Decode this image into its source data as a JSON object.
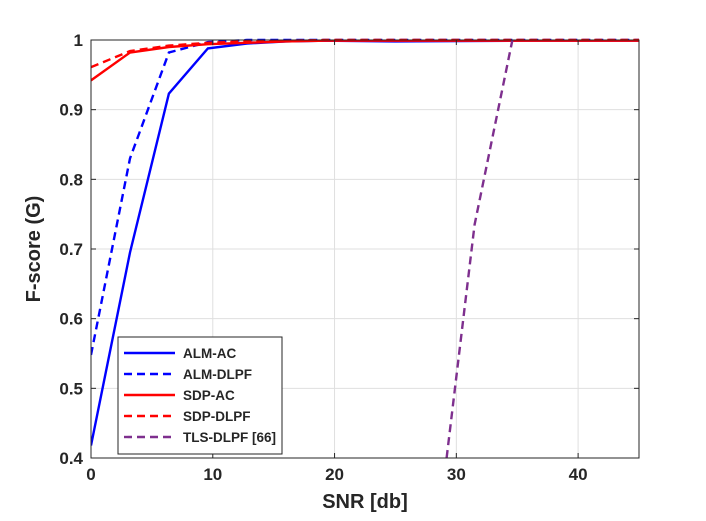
{
  "chart_data": {
    "type": "line",
    "title": "",
    "xlabel": "SNR [db]",
    "ylabel": "F-score (G)",
    "xlim": [
      0,
      45
    ],
    "ylim": [
      0.4,
      1
    ],
    "xticks": [
      0,
      10,
      20,
      30,
      40
    ],
    "yticks": [
      0.4,
      0.5,
      0.6,
      0.7,
      0.8,
      0.9,
      1
    ],
    "xtick_labels": [
      "0",
      "10",
      "20",
      "30",
      "40"
    ],
    "ytick_labels": [
      "0.4",
      "0.5",
      "0.6",
      "0.7",
      "0.8",
      "0.9",
      "1"
    ],
    "grid": true,
    "legend_position": "bottom-left",
    "series": [
      {
        "name": "ALM-AC",
        "color": "#0000ff",
        "dash": "solid",
        "x": [
          0,
          3.2,
          6.4,
          9.6,
          12.8,
          16,
          19.2,
          25,
          35,
          45
        ],
        "y": [
          0.418,
          0.695,
          0.923,
          0.988,
          0.995,
          0.998,
          0.999,
          0.998,
          0.999,
          0.999
        ]
      },
      {
        "name": "ALM-DLPF",
        "color": "#0000ff",
        "dash": "dashed",
        "x": [
          0,
          3.2,
          6.4,
          9.6,
          12.8,
          16,
          19.2,
          25,
          35,
          45
        ],
        "y": [
          0.548,
          0.83,
          0.982,
          0.997,
          1.0,
          1.0,
          1.0,
          1.0,
          1.0,
          1.0
        ]
      },
      {
        "name": "SDP-AC",
        "color": "#ff0000",
        "dash": "solid",
        "x": [
          0,
          3.2,
          6.4,
          9.6,
          12.8,
          16,
          19.2,
          25,
          35,
          45
        ],
        "y": [
          0.942,
          0.982,
          0.99,
          0.994,
          0.996,
          0.998,
          0.999,
          0.999,
          0.999,
          0.999
        ]
      },
      {
        "name": "SDP-DLPF",
        "color": "#ff0000",
        "dash": "dashed",
        "x": [
          0,
          3.2,
          6.4,
          9.6,
          12.8,
          16,
          19.2,
          25,
          35,
          45
        ],
        "y": [
          0.961,
          0.984,
          0.992,
          0.996,
          0.998,
          0.999,
          1.0,
          1.0,
          1.0,
          1.0
        ]
      },
      {
        "name": "TLS-DLPF [66]",
        "color": "#7e2f8e",
        "dash": "dashed",
        "x": [
          29.2,
          31.5,
          34.6
        ],
        "y": [
          0.4,
          0.735,
          1.0
        ]
      }
    ]
  }
}
